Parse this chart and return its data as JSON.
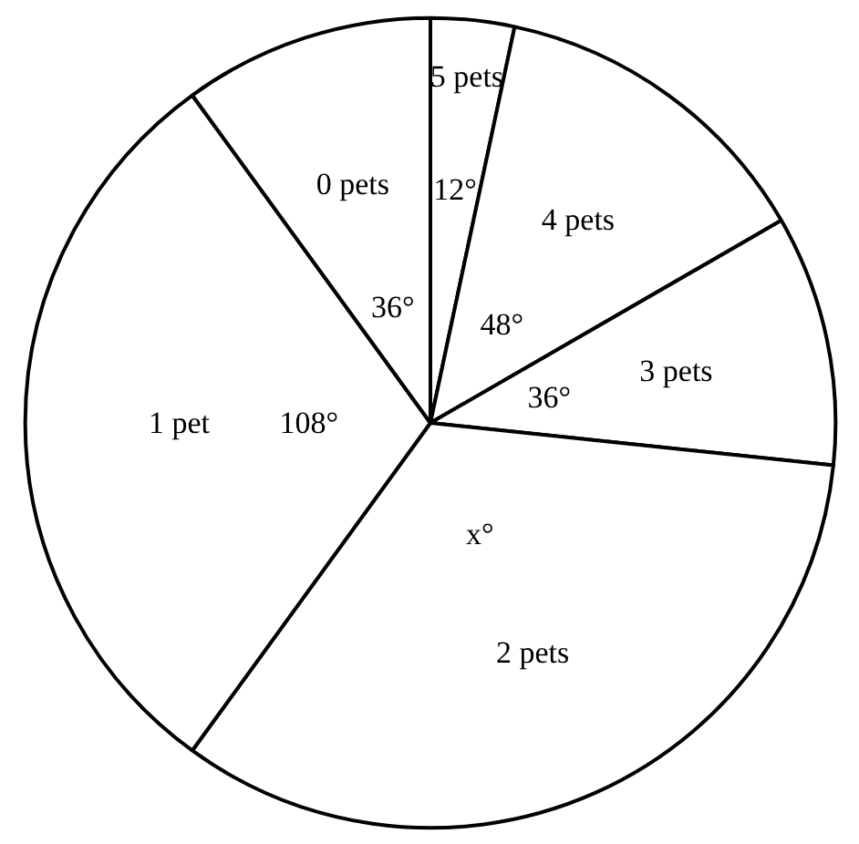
{
  "chart_data": {
    "type": "pie",
    "categories": [
      "5 pets",
      "4 pets",
      "3 pets",
      "2 pets",
      "1 pet",
      "0 pets"
    ],
    "values": [
      12,
      48,
      36,
      120,
      108,
      36
    ],
    "value_labels": [
      "12°",
      "48°",
      "36°",
      "x°",
      "108°",
      "36°"
    ],
    "colors": [
      "#ffffff",
      "#ffffff",
      "#ffffff",
      "#ffffff",
      "#ffffff",
      "#ffffff"
    ]
  }
}
